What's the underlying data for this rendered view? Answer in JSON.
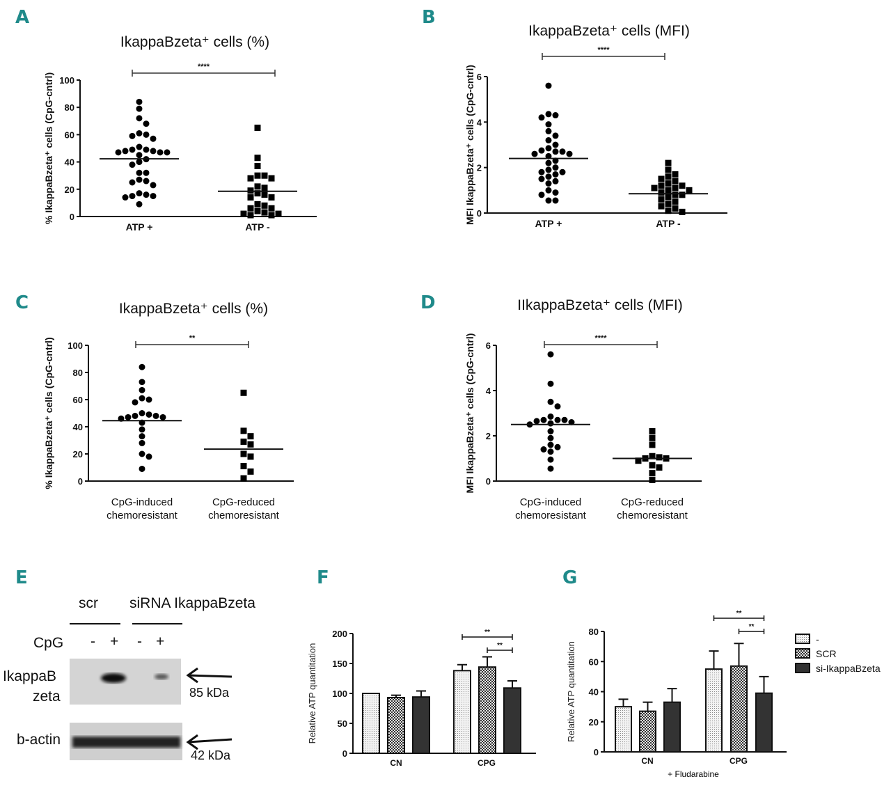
{
  "panels": {
    "A": {
      "letter": "A"
    },
    "B": {
      "letter": "B"
    },
    "C": {
      "letter": "C"
    },
    "D": {
      "letter": "D"
    },
    "E": {
      "letter": "E"
    },
    "F": {
      "letter": "F"
    },
    "G": {
      "letter": "G"
    }
  },
  "blot": {
    "group1": "scr",
    "group2": "siRNA IkappaBzeta",
    "cpg_label": "CpG",
    "lane_signs": [
      "-",
      "+",
      "-",
      "+"
    ],
    "row1_label_line1": "IkappaB",
    "row1_label_line2": "zeta",
    "row2_label": "b-actin",
    "row1_kda": "85 kDa",
    "row2_kda": "42 kDa"
  },
  "chart_data": [
    {
      "id": "A",
      "type": "scatter",
      "title": "IkappaBzeta⁺ cells (%)",
      "ylabel": "% IkappaBzeta⁺ cells (CpG-cntrl)",
      "ylim": [
        0,
        100
      ],
      "yticks": [
        0,
        20,
        40,
        60,
        80,
        100
      ],
      "significance": [
        {
          "label": "****",
          "from": 0,
          "to": 1
        }
      ],
      "groups": [
        {
          "name": "ATP +",
          "marker": "circle",
          "mean": 42.3,
          "values": [
            84,
            79,
            72,
            68,
            61,
            60,
            59,
            57,
            51,
            49,
            49,
            48,
            48,
            47,
            47,
            47,
            45,
            42,
            40,
            38,
            32,
            32,
            27,
            26,
            25,
            23,
            17,
            16,
            15,
            15,
            14,
            9
          ]
        },
        {
          "name": "ATP -",
          "marker": "square",
          "mean": 18.5,
          "values": [
            65,
            43,
            37,
            30,
            30,
            28,
            28,
            22,
            21,
            19,
            17,
            16,
            14,
            14,
            9,
            8,
            6,
            6,
            4,
            3,
            2,
            2,
            1,
            1
          ]
        }
      ]
    },
    {
      "id": "B",
      "type": "scatter",
      "title": "IkappaBzeta⁺ cells (MFI)",
      "ylabel": "MFI IkappaBzeta⁺ cells (CpG-cntrl)",
      "ylim": [
        0,
        6
      ],
      "yticks": [
        0,
        2,
        4,
        6
      ],
      "significance": [
        {
          "label": "****",
          "from": 0,
          "to": 1
        }
      ],
      "groups": [
        {
          "name": "ATP +",
          "marker": "circle",
          "mean": 2.4,
          "values": [
            5.6,
            4.35,
            4.3,
            4.2,
            3.9,
            3.6,
            3.4,
            3.2,
            3.0,
            2.85,
            2.75,
            2.7,
            2.7,
            2.6,
            2.6,
            2.5,
            2.3,
            2.2,
            2.0,
            1.9,
            1.8,
            1.8,
            1.7,
            1.6,
            1.5,
            1.4,
            1.3,
            1.0,
            0.9,
            0.8,
            0.55,
            0.55
          ]
        },
        {
          "name": "ATP -",
          "marker": "square",
          "mean": 0.85,
          "values": [
            2.2,
            1.9,
            1.7,
            1.6,
            1.5,
            1.4,
            1.3,
            1.2,
            1.2,
            1.1,
            1.1,
            1.0,
            1.0,
            0.9,
            0.8,
            0.8,
            0.7,
            0.6,
            0.5,
            0.4,
            0.3,
            0.2,
            0.1,
            0.05
          ]
        }
      ]
    },
    {
      "id": "C",
      "type": "scatter",
      "title": "IkappaBzeta⁺ cells (%)",
      "ylabel": "% IkappaBzeta⁺ cells (CpG-cntrl)",
      "ylim": [
        0,
        100
      ],
      "yticks": [
        0,
        20,
        40,
        60,
        80,
        100
      ],
      "significance": [
        {
          "label": "**",
          "from": 0,
          "to": 1
        }
      ],
      "groups": [
        {
          "name": "CpG-induced",
          "name2": "chemoresistant",
          "marker": "circle",
          "mean": 44.5,
          "values": [
            84,
            73,
            67,
            61,
            60,
            58,
            50,
            49,
            48,
            48,
            47,
            47,
            46,
            43,
            38,
            33,
            28,
            20,
            18,
            9
          ]
        },
        {
          "name": "CpG-reduced",
          "name2": "chemoresistant",
          "marker": "square",
          "mean": 23.5,
          "values": [
            65,
            37,
            33,
            29,
            27,
            20,
            18,
            11,
            7,
            2
          ]
        }
      ]
    },
    {
      "id": "D",
      "type": "scatter",
      "title": "IIkappaBzeta⁺ cells (MFI)",
      "ylabel": "MFI IkappaBzeta⁺ cells (CpG-cntrl)",
      "ylim": [
        0,
        6
      ],
      "yticks": [
        0,
        2,
        4,
        6
      ],
      "significance": [
        {
          "label": "****",
          "from": 0,
          "to": 1
        }
      ],
      "groups": [
        {
          "name": "CpG-induced",
          "name2": "chemoresistant",
          "marker": "circle",
          "mean": 2.5,
          "values": [
            5.6,
            4.3,
            3.5,
            3.3,
            2.85,
            2.7,
            2.7,
            2.7,
            2.65,
            2.6,
            2.55,
            2.5,
            2.2,
            1.9,
            1.6,
            1.5,
            1.4,
            1.3,
            0.95,
            0.55
          ]
        },
        {
          "name": "CpG-reduced",
          "name2": "chemoresistant",
          "marker": "square",
          "mean": 1.0,
          "values": [
            2.2,
            1.9,
            1.6,
            1.1,
            1.05,
            1.0,
            1.0,
            0.9,
            0.7,
            0.6,
            0.35,
            0.05
          ]
        }
      ]
    },
    {
      "id": "F",
      "type": "bar",
      "ylabel": "Relative ATP quantitation",
      "xlabel": "",
      "ylim": [
        0,
        200
      ],
      "yticks": [
        0,
        50,
        100,
        150,
        200
      ],
      "categories": [
        "CN",
        "CPG"
      ],
      "series": [
        {
          "name": "-",
          "values": [
            100,
            138
          ],
          "errors": [
            0,
            10
          ]
        },
        {
          "name": "SCR",
          "values": [
            93,
            144
          ],
          "errors": [
            4,
            17
          ]
        },
        {
          "name": "si-IkappaBzeta",
          "values": [
            94,
            109
          ],
          "errors": [
            10,
            12
          ]
        }
      ],
      "significance": [
        {
          "label": "**",
          "category": 1,
          "from": 0,
          "to": 2
        },
        {
          "label": "**",
          "category": 1,
          "from": 1,
          "to": 2
        }
      ]
    },
    {
      "id": "G",
      "type": "bar",
      "ylabel": "Relative ATP quantitation",
      "xlabel": "+ Fludarabine",
      "ylim": [
        0,
        80
      ],
      "yticks": [
        0,
        20,
        40,
        60,
        80
      ],
      "categories": [
        "CN",
        "CPG"
      ],
      "series": [
        {
          "name": "-",
          "values": [
            30,
            55
          ],
          "errors": [
            5,
            12
          ]
        },
        {
          "name": "SCR",
          "values": [
            27,
            57
          ],
          "errors": [
            6,
            15
          ]
        },
        {
          "name": "si-IkappaBzeta",
          "values": [
            33,
            39
          ],
          "errors": [
            9,
            11
          ]
        }
      ],
      "significance": [
        {
          "label": "**",
          "category": 1,
          "from": 0,
          "to": 2
        },
        {
          "label": "**",
          "category": 1,
          "from": 1,
          "to": 2
        }
      ],
      "legend": "right"
    }
  ]
}
